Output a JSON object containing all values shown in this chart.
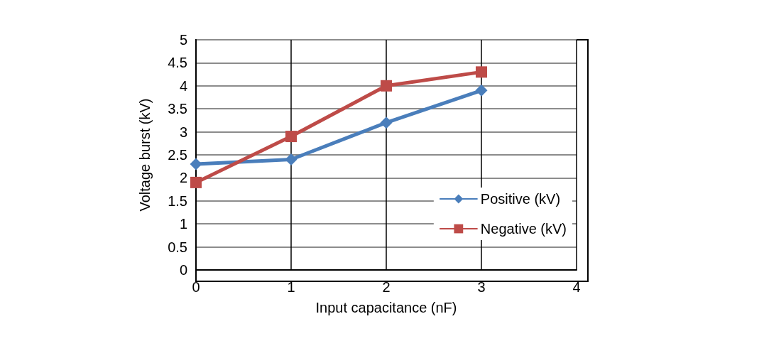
{
  "chart_data": {
    "type": "line",
    "xlabel": "Input capacitance (nF)",
    "ylabel": "Voltage burst (kV)",
    "xlim": [
      0,
      4
    ],
    "xticks": [
      0,
      1,
      2,
      3,
      4
    ],
    "ylim": [
      0,
      5
    ],
    "yticks": [
      0,
      0.5,
      1,
      1.5,
      2,
      2.5,
      3,
      3.5,
      4,
      4.5,
      5
    ],
    "grid": true,
    "legend": "bottom right",
    "line_style": "solid",
    "series": [
      {
        "name": "Positive (kV)",
        "color": "#4a7ebb",
        "marker": "diamond",
        "x": [
          0,
          1,
          2,
          3
        ],
        "values": [
          2.3,
          2.4,
          3.2,
          3.9
        ]
      },
      {
        "name": "Negative (kV)",
        "color": "#be4b48",
        "marker": "square",
        "x": [
          0,
          1,
          2,
          3
        ],
        "values": [
          1.9,
          2.9,
          4.0,
          4.3
        ]
      }
    ]
  }
}
